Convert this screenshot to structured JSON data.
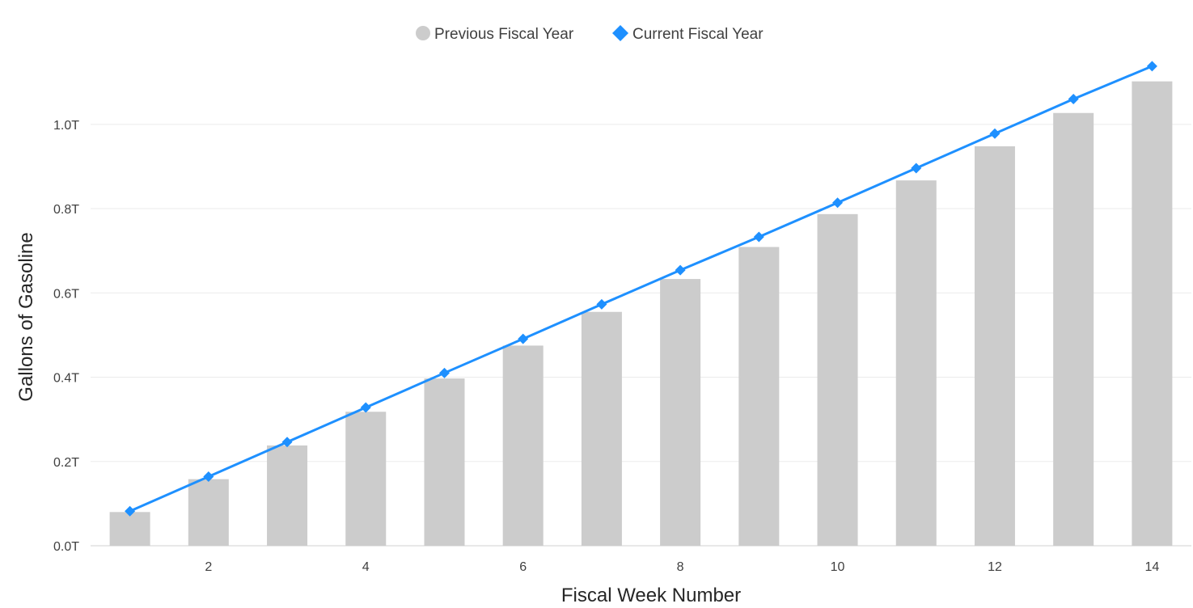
{
  "chart_data": {
    "type": "bar",
    "x": [
      1,
      2,
      3,
      4,
      5,
      6,
      7,
      8,
      9,
      10,
      11,
      12,
      13,
      14
    ],
    "x_ticks": [
      2,
      4,
      6,
      8,
      10,
      12,
      14
    ],
    "y_ticks": [
      "0.0T",
      "0.2T",
      "0.4T",
      "0.6T",
      "0.8T",
      "1.0T"
    ],
    "y_tick_values": [
      0,
      0.2,
      0.4,
      0.6,
      0.8,
      1.0
    ],
    "ylim": [
      0,
      1.18
    ],
    "xlabel": "Fiscal Week Number",
    "ylabel": "Gallons of Gasoline",
    "unit": "T",
    "grid": true,
    "legend_position": "top-center",
    "series": [
      {
        "name": "Previous Fiscal Year",
        "type": "bar",
        "color": "#cccccc",
        "marker": "circle",
        "values": [
          0.08,
          0.158,
          0.238,
          0.318,
          0.397,
          0.475,
          0.555,
          0.633,
          0.709,
          0.787,
          0.867,
          0.948,
          1.027,
          1.102
        ]
      },
      {
        "name": "Current Fiscal Year",
        "type": "line",
        "color": "#1e90ff",
        "marker": "diamond",
        "values": [
          0.082,
          0.164,
          0.246,
          0.328,
          0.41,
          0.491,
          0.573,
          0.654,
          0.733,
          0.814,
          0.896,
          0.978,
          1.06,
          1.138
        ]
      }
    ]
  }
}
